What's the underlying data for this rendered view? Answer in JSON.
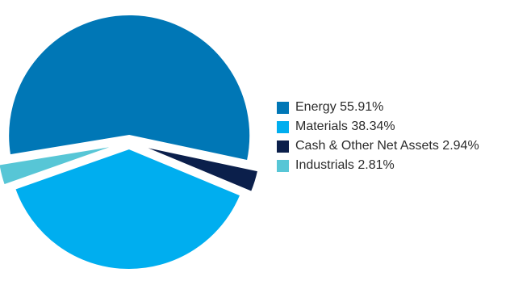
{
  "chart_data": {
    "type": "pie",
    "exploded": true,
    "slices": [
      {
        "label": "Energy",
        "value": 55.91,
        "display": "Energy 55.91%",
        "color": "#0077b6"
      },
      {
        "label": "Materials",
        "value": 38.34,
        "display": "Materials 38.34%",
        "color": "#00aeef"
      },
      {
        "label": "Cash & Other Net Assets",
        "value": 2.94,
        "display": "Cash & Other Net Assets 2.94%",
        "color": "#0b1f4b"
      },
      {
        "label": "Industrials",
        "value": 2.81,
        "display": "Industrials 2.81%",
        "color": "#57c6d6"
      }
    ],
    "slice_order_clockwise_from_top_start": [
      "Cash & Other Net Assets",
      "Materials",
      "Industrials",
      "Energy"
    ],
    "legend_position": "right"
  }
}
